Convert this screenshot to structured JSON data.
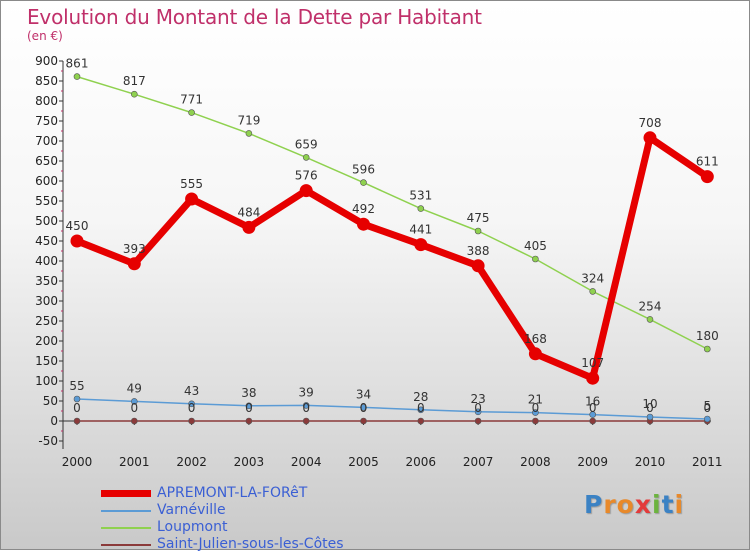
{
  "title": "Evolution du Montant de la Dette par Habitant",
  "subtitle": "(en €)",
  "logo": {
    "text": "Proxiti",
    "letters": [
      "P",
      "r",
      "o",
      "x",
      "i",
      "t",
      "i"
    ],
    "colors": [
      "#3b82c4",
      "#e8892a",
      "#e8892a",
      "#e33b3b",
      "#6cb33f",
      "#3b82c4",
      "#e8892a"
    ]
  },
  "chart_data": {
    "type": "line",
    "x": [
      "2000",
      "2001",
      "2002",
      "2003",
      "2004",
      "2005",
      "2006",
      "2007",
      "2008",
      "2009",
      "2010",
      "2011"
    ],
    "ylim": [
      -50,
      900
    ],
    "yticks": [
      -50,
      0,
      50,
      100,
      150,
      200,
      250,
      300,
      350,
      400,
      450,
      500,
      550,
      600,
      650,
      700,
      750,
      800,
      850,
      900
    ],
    "ytick_labels": [
      "-50",
      "0",
      "50",
      "100",
      "150",
      "200",
      "250",
      "300",
      "350",
      "400",
      "450",
      "500",
      "550",
      "600",
      "650",
      "700",
      "750",
      "800",
      "850",
      "900"
    ],
    "grid": "none",
    "legend_position": "bottom-left",
    "series": [
      {
        "name": "APREMONT-LA-FORêT",
        "color": "#e60000",
        "values": [
          450,
          393,
          555,
          484,
          576,
          492,
          441,
          388,
          168,
          107,
          708,
          611
        ],
        "labels": [
          "450",
          "393",
          "555",
          "484",
          "576",
          "492",
          "441",
          "388",
          "168",
          "107",
          "708",
          "611"
        ],
        "dy": [
          -11,
          -11,
          -11,
          -11,
          -11,
          -11,
          -11,
          -11,
          -11,
          -11,
          -11,
          -11
        ]
      },
      {
        "name": "Varnéville",
        "color": "#5b9bd5",
        "values": [
          55,
          49,
          43,
          38,
          39,
          34,
          28,
          23,
          21,
          16,
          10,
          5
        ],
        "labels": [
          "55",
          "49",
          "43",
          "38",
          "39",
          "34",
          "28",
          "23",
          "21",
          "16",
          "10",
          "5"
        ],
        "dy": [
          -9,
          -9,
          -9,
          -9,
          -9,
          -9,
          -9,
          -9,
          -9,
          -9,
          -9,
          -9
        ]
      },
      {
        "name": "Loupmont",
        "color": "#8fd14f",
        "values": [
          861,
          817,
          771,
          719,
          659,
          596,
          531,
          475,
          405,
          324,
          254,
          180
        ],
        "labels": [
          "861",
          "817",
          "771",
          "719",
          "659",
          "596",
          "531",
          "475",
          "405",
          "324",
          "254",
          "180"
        ],
        "dy": [
          -9,
          -9,
          -9,
          -9,
          -9,
          -9,
          -9,
          -9,
          -9,
          -9,
          -9,
          -9
        ]
      },
      {
        "name": "Saint-Julien-sous-les-Côtes",
        "color": "#8b3a3a",
        "values": [
          0,
          0,
          0,
          0,
          0,
          0,
          0,
          0,
          0,
          0,
          0,
          0
        ],
        "labels": [
          "0",
          "0",
          "0",
          "0",
          "0",
          "0",
          "0",
          "0",
          "0",
          "0",
          "0",
          "0"
        ],
        "dy": [
          -9,
          -9,
          -9,
          -9,
          -9,
          -9,
          -9,
          -9,
          -9,
          -9,
          -9,
          -9
        ]
      }
    ]
  }
}
